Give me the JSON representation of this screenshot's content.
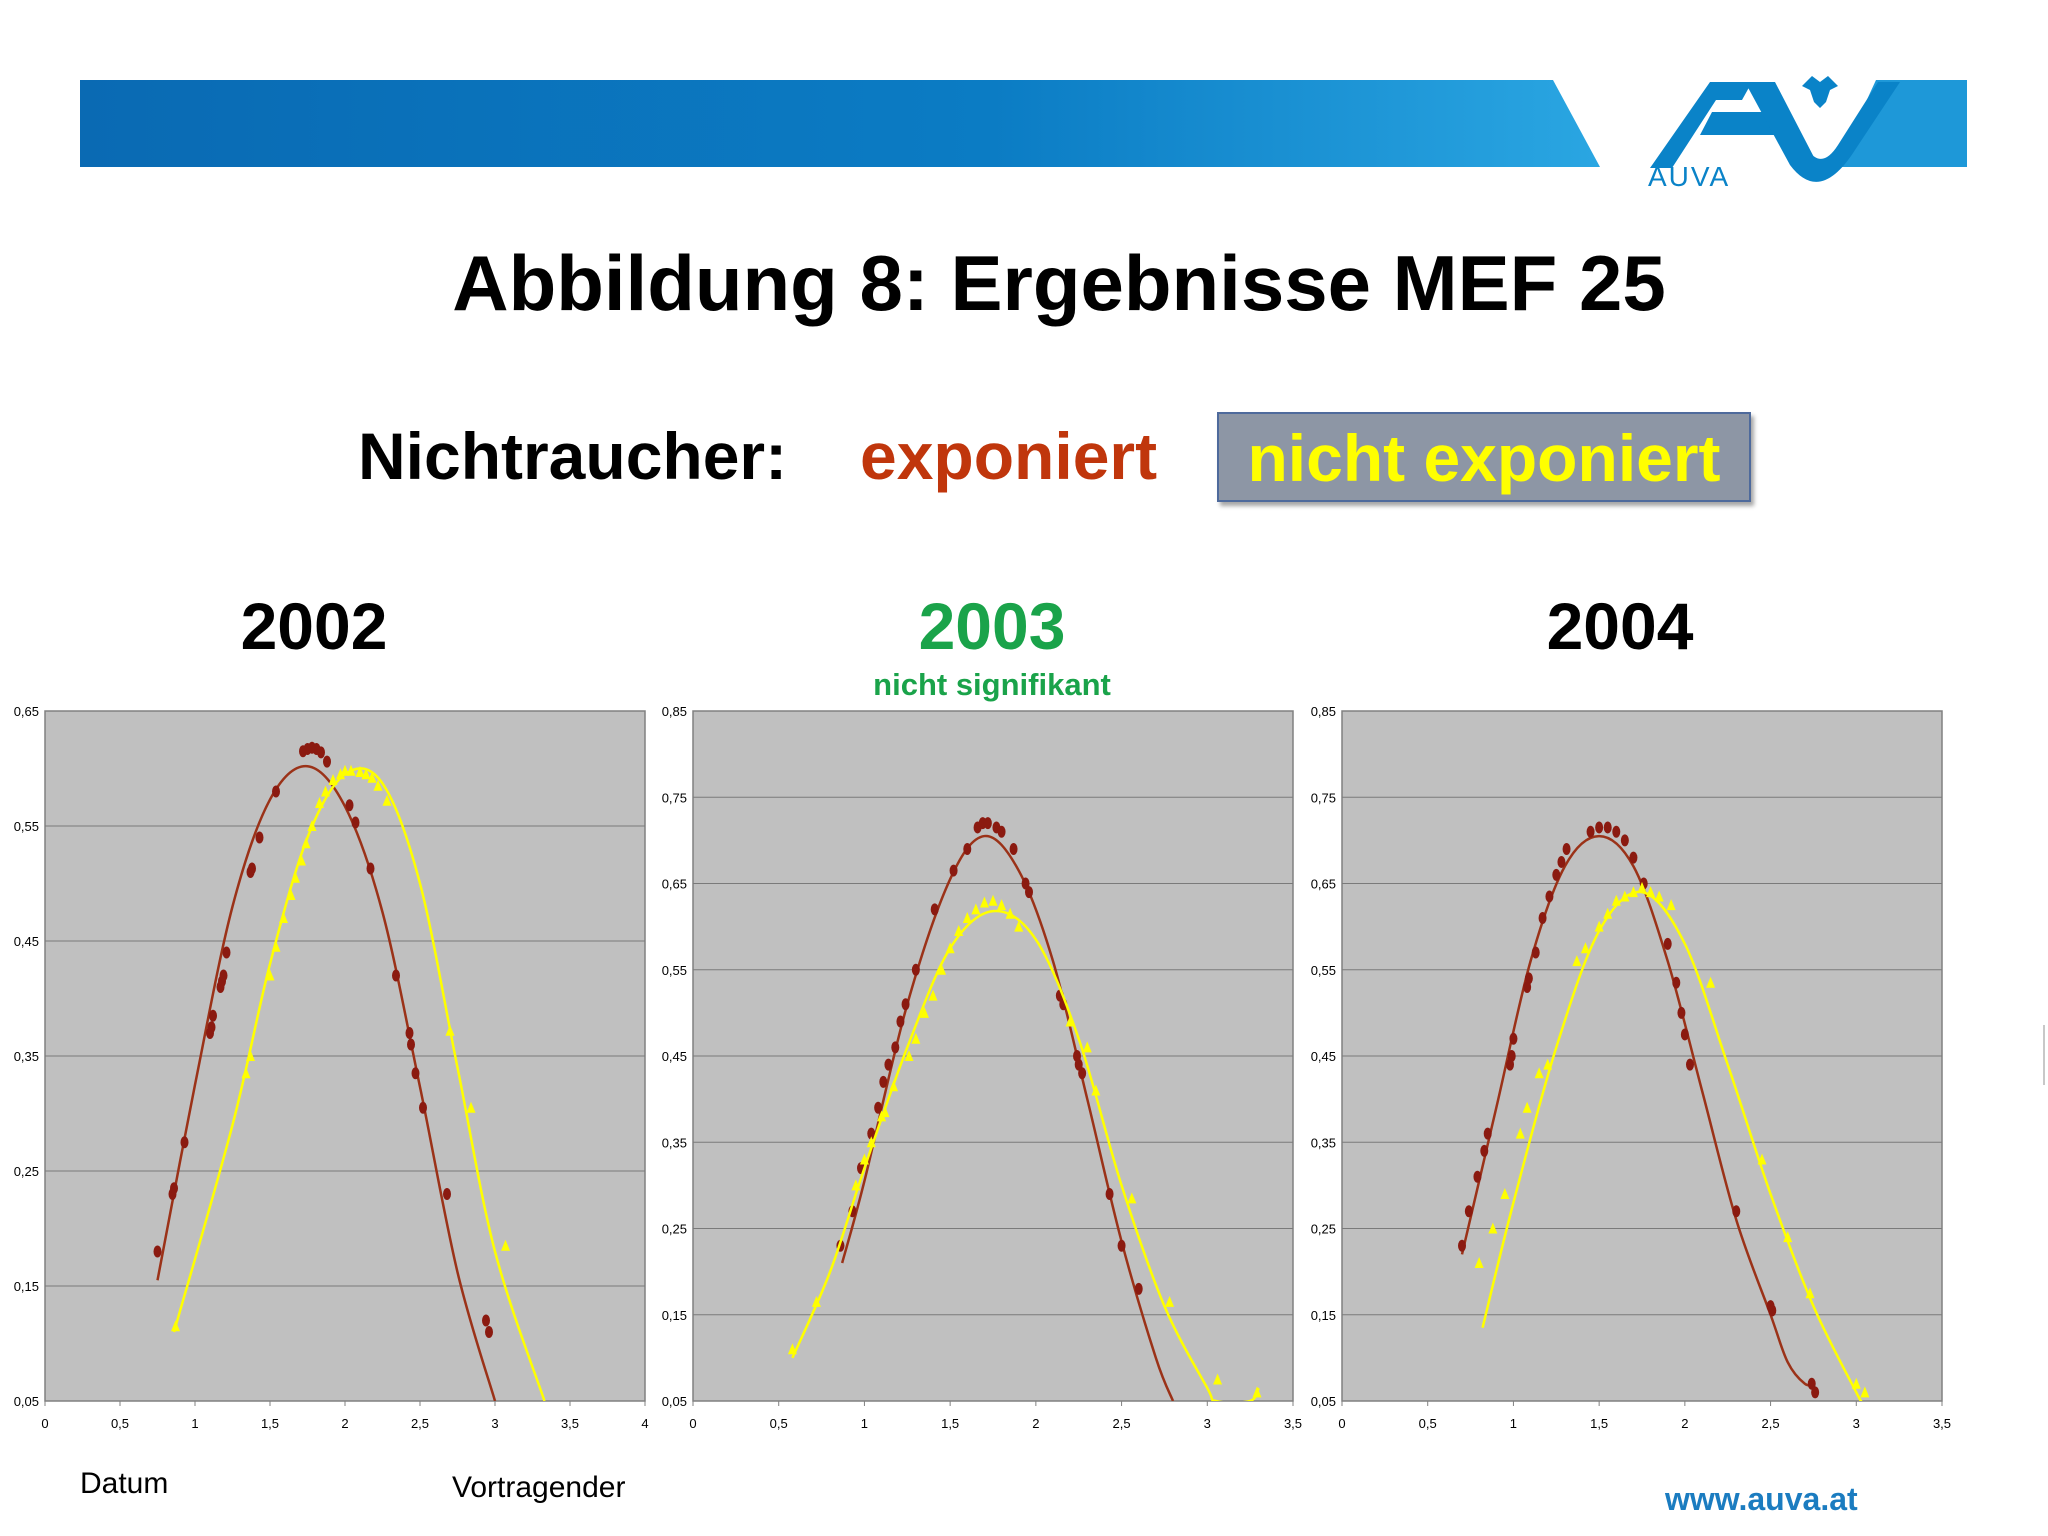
{
  "header": {
    "logo_text": "AUVA",
    "colors": {
      "banner_left": "#0a6fb7",
      "banner_right": "#29a3e0",
      "logo": "#0a83c8"
    }
  },
  "title": "Abbildung 8: Ergebnisse MEF 25",
  "legend": {
    "label": "Nichtraucher:",
    "exposed": "exponiert",
    "not_exposed": "nicht exponiert"
  },
  "panels": [
    {
      "year": "2002",
      "subtitle": ""
    },
    {
      "year": "2003",
      "subtitle": "nicht signifikant"
    },
    {
      "year": "2004",
      "subtitle": ""
    }
  ],
  "footer": {
    "left": "Datum",
    "middle": "Vortragender",
    "url": "www.auva.at"
  },
  "colors": {
    "exposed": "#8b1a10",
    "exposed_line": "#9b3218",
    "not_exposed": "#ffff00",
    "plot_bg": "#c0c0c0",
    "year_2003": "#1aa34a"
  },
  "chart_data": [
    {
      "type": "scatter",
      "title": "2002",
      "xlim": [
        0,
        4
      ],
      "ylim": [
        0.05,
        0.65
      ],
      "x_ticks": [
        "0",
        "0,5",
        "1",
        "1,5",
        "2",
        "2,5",
        "3",
        "3,5",
        "4"
      ],
      "y_ticks": [
        "0,05",
        "0,15",
        "0,25",
        "0,35",
        "0,45",
        "0,55",
        "0,65"
      ],
      "grid": true,
      "series": [
        {
          "name": "exponiert",
          "marker": "circle",
          "points": [
            [
              0.75,
              0.18
            ],
            [
              0.85,
              0.23
            ],
            [
              0.86,
              0.235
            ],
            [
              0.93,
              0.275
            ],
            [
              1.1,
              0.37
            ],
            [
              1.11,
              0.375
            ],
            [
              1.12,
              0.385
            ],
            [
              1.17,
              0.41
            ],
            [
              1.18,
              0.415
            ],
            [
              1.19,
              0.42
            ],
            [
              1.21,
              0.44
            ],
            [
              1.37,
              0.51
            ],
            [
              1.38,
              0.513
            ],
            [
              1.43,
              0.54
            ],
            [
              1.54,
              0.58
            ],
            [
              1.72,
              0.615
            ],
            [
              1.75,
              0.617
            ],
            [
              1.78,
              0.618
            ],
            [
              1.81,
              0.617
            ],
            [
              1.84,
              0.614
            ],
            [
              1.88,
              0.606
            ],
            [
              2.03,
              0.568
            ],
            [
              2.07,
              0.553
            ],
            [
              2.17,
              0.513
            ],
            [
              2.34,
              0.42
            ],
            [
              2.43,
              0.37
            ],
            [
              2.44,
              0.36
            ],
            [
              2.47,
              0.335
            ],
            [
              2.52,
              0.305
            ],
            [
              2.68,
              0.23
            ],
            [
              2.94,
              0.12
            ],
            [
              2.96,
              0.11
            ]
          ],
          "fit_curve": [
            [
              0.75,
              0.155
            ],
            [
              1.0,
              0.325
            ],
            [
              1.25,
              0.48
            ],
            [
              1.5,
              0.573
            ],
            [
              1.75,
              0.602
            ],
            [
              2.0,
              0.567
            ],
            [
              2.25,
              0.475
            ],
            [
              2.5,
              0.323
            ],
            [
              2.75,
              0.162
            ],
            [
              3.0,
              0.05
            ]
          ]
        },
        {
          "name": "nicht exponiert",
          "marker": "triangle",
          "points": [
            [
              0.87,
              0.115
            ],
            [
              1.34,
              0.335
            ],
            [
              1.37,
              0.35
            ],
            [
              1.5,
              0.42
            ],
            [
              1.54,
              0.445
            ],
            [
              1.59,
              0.47
            ],
            [
              1.64,
              0.49
            ],
            [
              1.67,
              0.505
            ],
            [
              1.71,
              0.52
            ],
            [
              1.74,
              0.535
            ],
            [
              1.78,
              0.55
            ],
            [
              1.83,
              0.57
            ],
            [
              1.87,
              0.58
            ],
            [
              1.92,
              0.59
            ],
            [
              1.97,
              0.595
            ],
            [
              2.0,
              0.598
            ],
            [
              2.04,
              0.598
            ],
            [
              2.1,
              0.597
            ],
            [
              2.14,
              0.595
            ],
            [
              2.18,
              0.592
            ],
            [
              2.22,
              0.585
            ],
            [
              2.28,
              0.572
            ],
            [
              2.7,
              0.372
            ],
            [
              2.84,
              0.305
            ],
            [
              3.07,
              0.185
            ]
          ],
          "fit_curve": [
            [
              0.86,
              0.11
            ],
            [
              1.25,
              0.29
            ],
            [
              1.5,
              0.43
            ],
            [
              1.75,
              0.54
            ],
            [
              2.0,
              0.595
            ],
            [
              2.25,
              0.587
            ],
            [
              2.5,
              0.5
            ],
            [
              2.75,
              0.34
            ],
            [
              3.0,
              0.18
            ],
            [
              3.33,
              0.05
            ]
          ]
        }
      ]
    },
    {
      "type": "scatter",
      "title": "2003",
      "subtitle": "nicht signifikant",
      "xlim": [
        0,
        3.5
      ],
      "ylim": [
        0.05,
        0.85
      ],
      "x_ticks": [
        "0",
        "0,5",
        "1",
        "1,5",
        "2",
        "2,5",
        "3",
        "3,5"
      ],
      "y_ticks": [
        "0,05",
        "0,15",
        "0,25",
        "0,35",
        "0,45",
        "0,55",
        "0,65",
        "0,75",
        "0,85"
      ],
      "grid": true,
      "series": [
        {
          "name": "exponiert",
          "marker": "circle",
          "points": [
            [
              0.86,
              0.23
            ],
            [
              0.93,
              0.27
            ],
            [
              0.98,
              0.32
            ],
            [
              1.04,
              0.36
            ],
            [
              1.08,
              0.39
            ],
            [
              1.11,
              0.42
            ],
            [
              1.14,
              0.44
            ],
            [
              1.18,
              0.46
            ],
            [
              1.21,
              0.49
            ],
            [
              1.24,
              0.51
            ],
            [
              1.3,
              0.55
            ],
            [
              1.41,
              0.62
            ],
            [
              1.52,
              0.665
            ],
            [
              1.6,
              0.69
            ],
            [
              1.66,
              0.715
            ],
            [
              1.69,
              0.72
            ],
            [
              1.72,
              0.72
            ],
            [
              1.77,
              0.715
            ],
            [
              1.8,
              0.71
            ],
            [
              1.87,
              0.69
            ],
            [
              1.94,
              0.65
            ],
            [
              1.96,
              0.64
            ],
            [
              2.14,
              0.52
            ],
            [
              2.16,
              0.51
            ],
            [
              2.24,
              0.45
            ],
            [
              2.25,
              0.44
            ],
            [
              2.27,
              0.43
            ],
            [
              2.43,
              0.29
            ],
            [
              2.5,
              0.23
            ],
            [
              2.6,
              0.18
            ]
          ],
          "fit_curve": [
            [
              0.87,
              0.21
            ],
            [
              1.0,
              0.305
            ],
            [
              1.25,
              0.51
            ],
            [
              1.5,
              0.655
            ],
            [
              1.7,
              0.705
            ],
            [
              1.9,
              0.665
            ],
            [
              2.1,
              0.56
            ],
            [
              2.3,
              0.4
            ],
            [
              2.5,
              0.235
            ],
            [
              2.7,
              0.1
            ],
            [
              2.8,
              0.05
            ]
          ]
        },
        {
          "name": "nicht exponiert",
          "marker": "triangle",
          "points": [
            [
              0.58,
              0.11
            ],
            [
              0.72,
              0.165
            ],
            [
              0.95,
              0.3
            ],
            [
              1.0,
              0.33
            ],
            [
              1.04,
              0.35
            ],
            [
              1.1,
              0.38
            ],
            [
              1.12,
              0.385
            ],
            [
              1.17,
              0.415
            ],
            [
              1.26,
              0.45
            ],
            [
              1.3,
              0.47
            ],
            [
              1.35,
              0.5
            ],
            [
              1.4,
              0.52
            ],
            [
              1.45,
              0.55
            ],
            [
              1.5,
              0.575
            ],
            [
              1.55,
              0.595
            ],
            [
              1.6,
              0.61
            ],
            [
              1.65,
              0.62
            ],
            [
              1.7,
              0.628
            ],
            [
              1.75,
              0.63
            ],
            [
              1.8,
              0.625
            ],
            [
              1.85,
              0.615
            ],
            [
              1.9,
              0.6
            ],
            [
              2.2,
              0.49
            ],
            [
              2.3,
              0.46
            ],
            [
              2.35,
              0.41
            ],
            [
              2.56,
              0.285
            ],
            [
              2.78,
              0.165
            ],
            [
              3.06,
              0.075
            ],
            [
              3.29,
              0.06
            ]
          ],
          "fit_curve": [
            [
              0.58,
              0.1
            ],
            [
              0.8,
              0.2
            ],
            [
              1.0,
              0.32
            ],
            [
              1.25,
              0.46
            ],
            [
              1.5,
              0.575
            ],
            [
              1.75,
              0.618
            ],
            [
              2.0,
              0.585
            ],
            [
              2.25,
              0.47
            ],
            [
              2.5,
              0.3
            ],
            [
              2.75,
              0.16
            ],
            [
              3.0,
              0.065
            ],
            [
              3.05,
              0.05
            ],
            [
              3.25,
              0.05
            ],
            [
              3.3,
              0.065
            ]
          ]
        }
      ]
    },
    {
      "type": "scatter",
      "title": "2004",
      "xlim": [
        0,
        3.5
      ],
      "ylim": [
        0.05,
        0.85
      ],
      "x_ticks": [
        "0",
        "0,5",
        "1",
        "1,5",
        "2",
        "2,5",
        "3",
        "3,5"
      ],
      "y_ticks": [
        "0,05",
        "0,15",
        "0,25",
        "0,35",
        "0,45",
        "0,55",
        "0,65",
        "0,75",
        "0,85"
      ],
      "grid": true,
      "series": [
        {
          "name": "exponiert",
          "marker": "circle",
          "points": [
            [
              0.7,
              0.23
            ],
            [
              0.74,
              0.27
            ],
            [
              0.79,
              0.31
            ],
            [
              0.83,
              0.34
            ],
            [
              0.85,
              0.36
            ],
            [
              0.98,
              0.44
            ],
            [
              0.99,
              0.45
            ],
            [
              1.0,
              0.47
            ],
            [
              1.08,
              0.53
            ],
            [
              1.09,
              0.54
            ],
            [
              1.13,
              0.57
            ],
            [
              1.17,
              0.61
            ],
            [
              1.21,
              0.635
            ],
            [
              1.25,
              0.66
            ],
            [
              1.28,
              0.675
            ],
            [
              1.31,
              0.69
            ],
            [
              1.45,
              0.71
            ],
            [
              1.5,
              0.715
            ],
            [
              1.55,
              0.715
            ],
            [
              1.6,
              0.71
            ],
            [
              1.65,
              0.7
            ],
            [
              1.7,
              0.68
            ],
            [
              1.76,
              0.65
            ],
            [
              1.9,
              0.58
            ],
            [
              1.95,
              0.535
            ],
            [
              1.98,
              0.5
            ],
            [
              2.0,
              0.475
            ],
            [
              2.03,
              0.44
            ],
            [
              2.3,
              0.27
            ],
            [
              2.5,
              0.16
            ],
            [
              2.51,
              0.155
            ],
            [
              2.74,
              0.07
            ],
            [
              2.76,
              0.06
            ]
          ],
          "fit_curve": [
            [
              0.7,
              0.22
            ],
            [
              0.9,
              0.39
            ],
            [
              1.1,
              0.56
            ],
            [
              1.3,
              0.67
            ],
            [
              1.5,
              0.705
            ],
            [
              1.7,
              0.67
            ],
            [
              1.9,
              0.56
            ],
            [
              2.1,
              0.41
            ],
            [
              2.3,
              0.26
            ],
            [
              2.5,
              0.15
            ],
            [
              2.6,
              0.095
            ],
            [
              2.7,
              0.07
            ],
            [
              2.76,
              0.07
            ]
          ]
        },
        {
          "name": "nicht exponiert",
          "marker": "triangle",
          "points": [
            [
              0.8,
              0.21
            ],
            [
              0.88,
              0.25
            ],
            [
              0.95,
              0.29
            ],
            [
              1.04,
              0.36
            ],
            [
              1.08,
              0.39
            ],
            [
              1.15,
              0.43
            ],
            [
              1.2,
              0.44
            ],
            [
              1.37,
              0.56
            ],
            [
              1.42,
              0.575
            ],
            [
              1.5,
              0.6
            ],
            [
              1.55,
              0.615
            ],
            [
              1.6,
              0.63
            ],
            [
              1.65,
              0.635
            ],
            [
              1.7,
              0.64
            ],
            [
              1.75,
              0.645
            ],
            [
              1.8,
              0.64
            ],
            [
              1.85,
              0.635
            ],
            [
              1.92,
              0.625
            ],
            [
              2.15,
              0.535
            ],
            [
              2.45,
              0.33
            ],
            [
              2.6,
              0.24
            ],
            [
              2.73,
              0.175
            ],
            [
              3.0,
              0.07
            ],
            [
              3.05,
              0.06
            ]
          ],
          "fit_curve": [
            [
              0.82,
              0.135
            ],
            [
              1.0,
              0.28
            ],
            [
              1.25,
              0.46
            ],
            [
              1.5,
              0.595
            ],
            [
              1.75,
              0.64
            ],
            [
              2.0,
              0.58
            ],
            [
              2.25,
              0.44
            ],
            [
              2.5,
              0.29
            ],
            [
              2.75,
              0.16
            ],
            [
              3.0,
              0.06
            ],
            [
              3.03,
              0.05
            ]
          ]
        }
      ]
    }
  ]
}
